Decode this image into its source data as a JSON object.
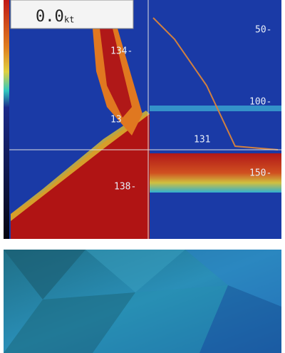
{
  "sonar": {
    "speed_value": "0.0",
    "speed_unit": "kt",
    "left_depth_labels": [
      "134-",
      "13",
      "138-"
    ],
    "right_depth_labels": [
      "50-",
      "100-",
      "150-"
    ],
    "cursor_depth": "131"
  }
}
